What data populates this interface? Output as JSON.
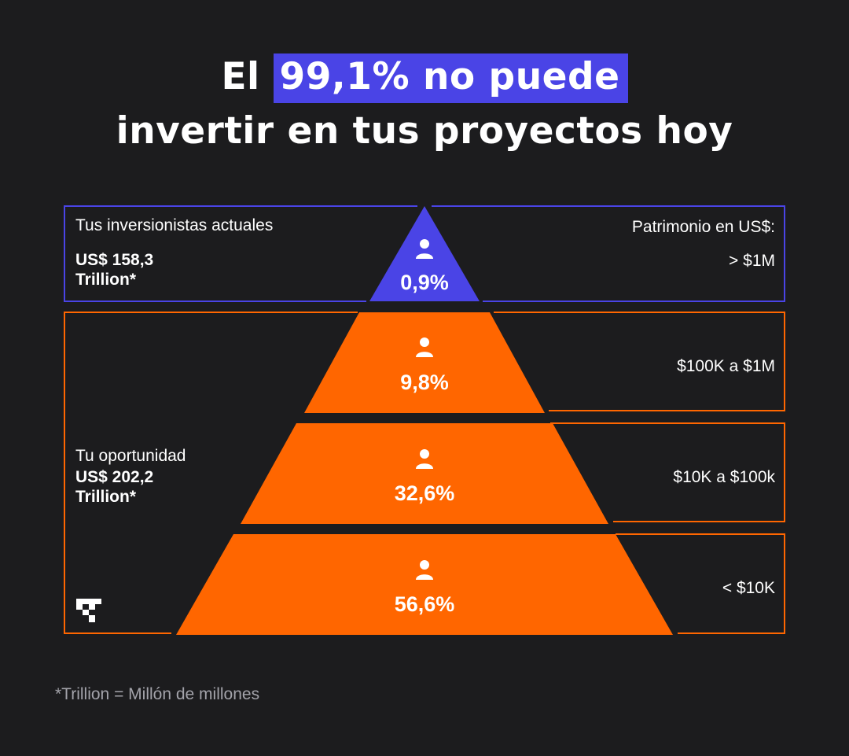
{
  "title": {
    "prefix": "El",
    "highlight": "99,1% no puede",
    "line2": "invertir en tus proyectos hoy"
  },
  "left": {
    "current_investors_label": "Tus inversionistas actuales",
    "current_investors_value_1": "US$ 158,3",
    "current_investors_value_2": "Trillion*",
    "opportunity_label": "Tu oportunidad",
    "opportunity_value_1": "US$ 202,2",
    "opportunity_value_2": "Trillion*"
  },
  "right": {
    "header": "Patrimonio en US$:"
  },
  "tiers": [
    {
      "percent": "0,9%",
      "range": "> $1M",
      "color": "#4a44e6",
      "group": "current"
    },
    {
      "percent": "9,8%",
      "range": "$100K a $1M",
      "color": "#ff6600",
      "group": "opportunity"
    },
    {
      "percent": "32,6%",
      "range": "$10K a $100k",
      "color": "#ff6600",
      "group": "opportunity"
    },
    {
      "percent": "56,6%",
      "range": "< $10K",
      "color": "#ff6600",
      "group": "opportunity"
    }
  ],
  "colors": {
    "background": "#1c1c1e",
    "accent_blue": "#4a44e6",
    "accent_orange": "#ff6600"
  },
  "footnote": "*Trillion = Millón de millones",
  "logo": "brand-logo-icon"
}
